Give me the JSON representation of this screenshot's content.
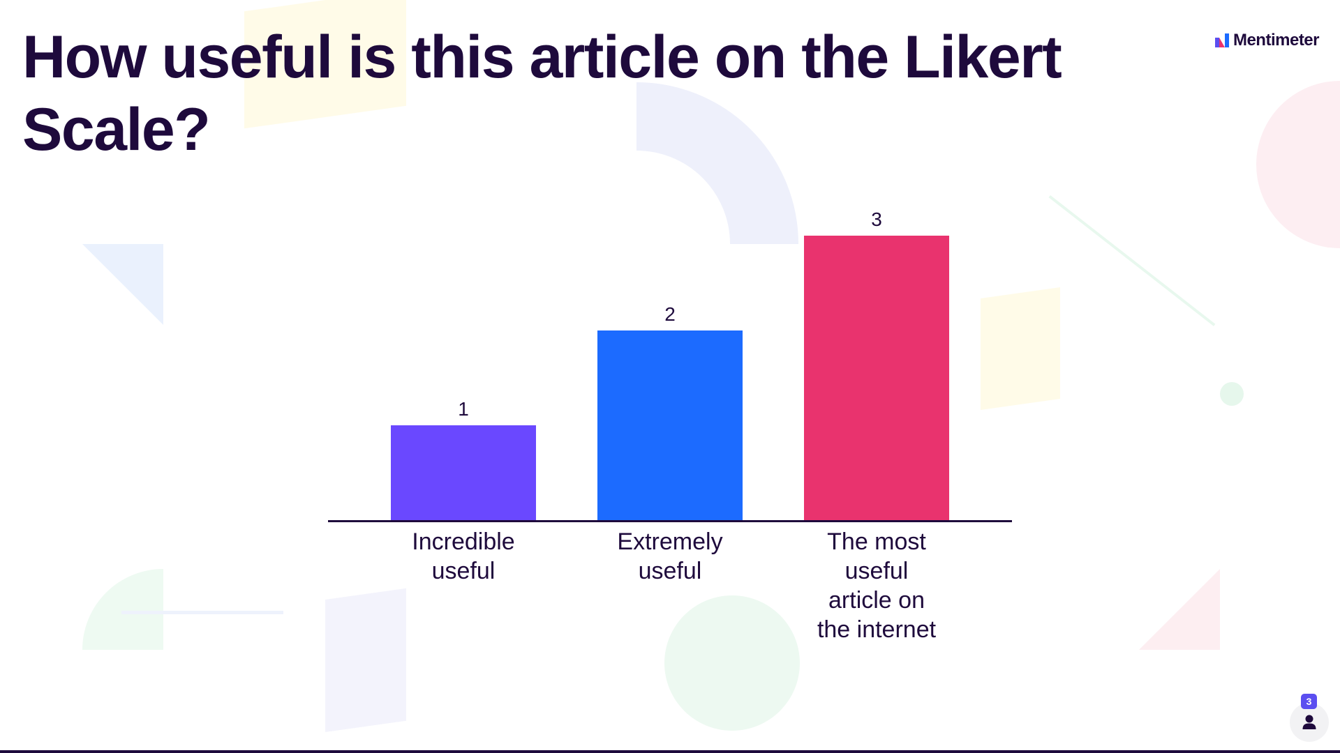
{
  "slide": {
    "title": "How useful is this article on the Likert Scale?",
    "brand": "Mentimeter",
    "audience_count": "3",
    "logo_icon": "mentimeter-logo-icon",
    "audience_icon": "person-icon"
  },
  "colors": {
    "title": "#1e0a3c",
    "bar_1": "#6a48ff",
    "bar_2": "#1c6bff",
    "bar_3": "#e9336e",
    "axis": "#1e0a3c"
  },
  "chart_data": {
    "type": "bar",
    "title": "How useful is this article on the Likert Scale?",
    "categories": [
      "Incredible useful",
      "Extremely useful",
      "The most useful article on the internet"
    ],
    "category_lines": [
      [
        "Incredible",
        "useful"
      ],
      [
        "Extremely",
        "useful"
      ],
      [
        "The most",
        "useful",
        "article on",
        "the internet"
      ]
    ],
    "values": [
      1,
      2,
      3
    ],
    "data_labels": [
      "1",
      "2",
      "3"
    ],
    "ylim": [
      0,
      3
    ],
    "grid": false,
    "legend": "none",
    "xlabel": "",
    "ylabel": ""
  }
}
